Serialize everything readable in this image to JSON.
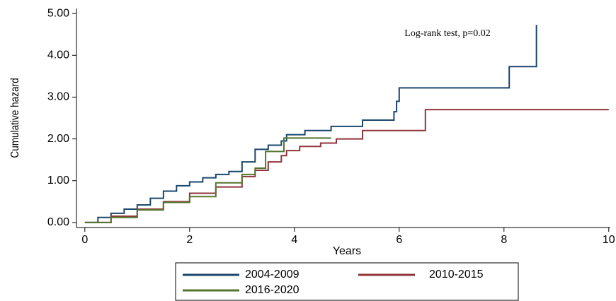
{
  "chart_data": {
    "type": "line",
    "step": true,
    "annotation": "Log-rank test, p=0.02",
    "x_label": "Years",
    "y_label": "Cumulative hazard",
    "xlim": [
      -0.16,
      10.03
    ],
    "ylim": [
      -0.12,
      5.12
    ],
    "xticks": [
      0,
      2,
      4,
      6,
      8,
      10
    ],
    "yticks": [
      {
        "value": 0,
        "label": "0.00"
      },
      {
        "value": 1,
        "label": "1.00"
      },
      {
        "value": 2,
        "label": "2.00"
      },
      {
        "value": 3,
        "label": "3.00"
      },
      {
        "value": 4,
        "label": "4.00"
      },
      {
        "value": 5,
        "label": "5.00"
      }
    ],
    "series": [
      {
        "name": "2004-2009",
        "color": "#1a476f",
        "x": [
          0,
          0.25,
          0.5,
          0.75,
          1,
          1.25,
          1.5,
          1.75,
          2,
          2.25,
          2.5,
          2.75,
          3,
          3.25,
          3.5,
          3.75,
          3.85,
          4.2,
          4.7,
          5.3,
          5.9,
          5.95,
          6.0,
          8.1,
          8.62
        ],
        "values": [
          0,
          0.12,
          0.22,
          0.32,
          0.42,
          0.58,
          0.75,
          0.88,
          0.97,
          1.07,
          1.15,
          1.22,
          1.45,
          1.75,
          1.85,
          1.95,
          2.1,
          2.2,
          2.3,
          2.45,
          2.65,
          2.9,
          3.22,
          3.73,
          4.73
        ]
      },
      {
        "name": "2010-2015",
        "color": "#90353b",
        "x": [
          0,
          0.5,
          1,
          1.5,
          2,
          2.5,
          3,
          3.25,
          3.5,
          3.75,
          3.85,
          4.1,
          4.5,
          4.8,
          5.3,
          6.5,
          10
        ],
        "values": [
          0,
          0.15,
          0.32,
          0.5,
          0.7,
          0.85,
          1.1,
          1.25,
          1.45,
          1.6,
          1.72,
          1.82,
          1.9,
          2.0,
          2.2,
          2.7,
          2.7
        ]
      },
      {
        "name": "2016-2020",
        "color": "#55752f",
        "x": [
          0,
          0.5,
          1,
          1.5,
          2,
          2.5,
          3,
          3.25,
          3.45,
          3.8,
          4.7
        ],
        "values": [
          0,
          0.12,
          0.3,
          0.48,
          0.62,
          0.95,
          1.15,
          1.3,
          1.7,
          2.02,
          2.02
        ]
      }
    ]
  }
}
